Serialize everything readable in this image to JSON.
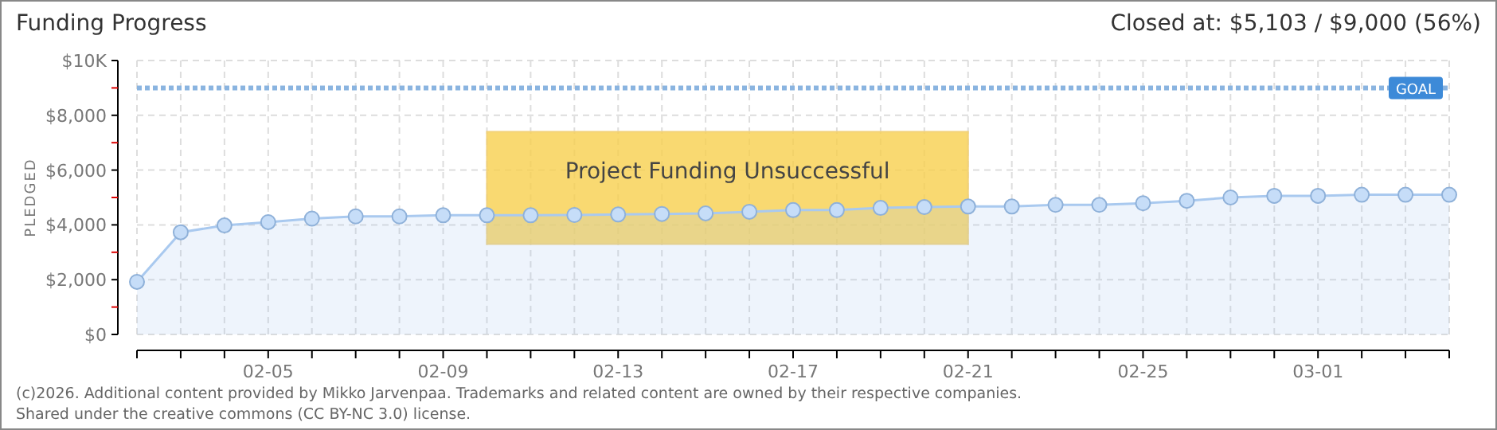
{
  "chart_data": {
    "type": "area",
    "title": "Funding Progress",
    "subtitle": "Closed at:  $5,103 /  $9,000 (56%)",
    "ylabel": "PLEDGED",
    "annotations": [
      "Project Funding Unsuccessful",
      "(c)2026. Additional content provided by Mikko Jarvenpaa. Trademarks and related content are owned by their respective companies.",
      "Shared under the creative commons (CC BY-NC 3.0) license."
    ],
    "x": [
      "--02-02",
      "--02-03",
      "--02-04",
      "--02-05",
      "--02-06",
      "--02-07",
      "--02-08",
      "--02-09",
      "--02-10",
      "--02-11",
      "--02-12",
      "--02-13",
      "--02-14",
      "--02-15",
      "--02-16",
      "--02-17",
      "--02-18",
      "--02-19",
      "--02-20",
      "--02-21",
      "--02-22",
      "--02-23",
      "--02-24",
      "--02-25",
      "--02-26",
      "--02-27",
      "--02-28",
      "--03-01",
      "--03-02",
      "--03-03",
      "--03-04"
    ],
    "series": [
      {
        "color": "#a9c9ef",
        "values": [
          1920,
          3730,
          3980,
          4100,
          4230,
          4310,
          4310,
          4350,
          4350,
          4350,
          4360,
          4380,
          4400,
          4420,
          4480,
          4540,
          4540,
          4620,
          4650,
          4670,
          4670,
          4730,
          4730,
          4790,
          4880,
          5000,
          5060,
          5060,
          5100,
          5100,
          5100
        ]
      }
    ],
    "xlim": [
      "--02-02",
      "--03-04"
    ],
    "xticks": [
      {
        "value": "--02-02",
        "label": null
      },
      {
        "value": "--02-03",
        "label": null
      },
      {
        "value": "--02-04",
        "label": null
      },
      {
        "value": "--02-05",
        "label": "02-05"
      },
      {
        "value": "--02-06",
        "label": null
      },
      {
        "value": "--02-07",
        "label": null
      },
      {
        "value": "--02-08",
        "label": null
      },
      {
        "value": "--02-09",
        "label": "02-09"
      },
      {
        "value": "--02-10",
        "label": null
      },
      {
        "value": "--02-11",
        "label": null
      },
      {
        "value": "--02-12",
        "label": null
      },
      {
        "value": "--02-13",
        "label": "02-13"
      },
      {
        "value": "--02-14",
        "label": null
      },
      {
        "value": "--02-15",
        "label": null
      },
      {
        "value": "--02-16",
        "label": null
      },
      {
        "value": "--02-17",
        "label": "02-17"
      },
      {
        "value": "--02-18",
        "label": null
      },
      {
        "value": "--02-19",
        "label": null
      },
      {
        "value": "--02-20",
        "label": null
      },
      {
        "value": "--02-21",
        "label": "02-21"
      },
      {
        "value": "--02-22",
        "label": null
      },
      {
        "value": "--02-23",
        "label": null
      },
      {
        "value": "--02-24",
        "label": null
      },
      {
        "value": "--02-25",
        "label": "02-25"
      },
      {
        "value": "--02-26",
        "label": null
      },
      {
        "value": "--02-27",
        "label": null
      },
      {
        "value": "--02-28",
        "label": null
      },
      {
        "value": "--03-01",
        "label": "03-01"
      },
      {
        "value": "--03-02",
        "label": null
      },
      {
        "value": "--03-03",
        "label": null
      },
      {
        "value": "--03-04",
        "label": null
      }
    ],
    "ylim": [
      0,
      10000
    ],
    "yticks": [
      {
        "value": 0,
        "label": "$0"
      },
      {
        "value": 1000,
        "label": null
      },
      {
        "value": 2000,
        "label": "$2,000"
      },
      {
        "value": 3000,
        "label": null
      },
      {
        "value": 4000,
        "label": "$4,000"
      },
      {
        "value": 5000,
        "label": null
      },
      {
        "value": 6000,
        "label": "$6,000"
      },
      {
        "value": 7000,
        "label": null
      },
      {
        "value": 8000,
        "label": "$8,000"
      },
      {
        "value": 9000,
        "label": null
      },
      {
        "value": 10000,
        "label": "$10K"
      }
    ],
    "ref_lines": [
      {
        "axis": "y",
        "value": 9000,
        "label": "GOAL",
        "color": "#8ab4e0",
        "line_style": "dotted"
      }
    ],
    "grid": true,
    "marker": "circle"
  }
}
